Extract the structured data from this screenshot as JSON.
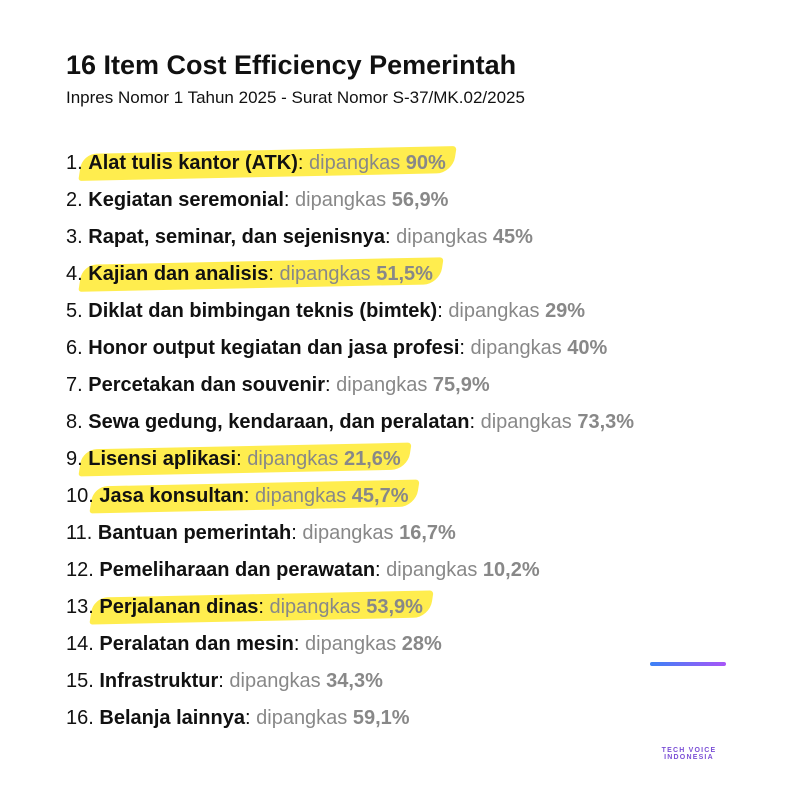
{
  "header": {
    "title": "16 Item Cost Efficiency Pemerintah",
    "subtitle": "Inpres Nomor 1 Tahun 2025 - Surat Nomor S-37/MK.02/2025"
  },
  "items": [
    {
      "num": "1.",
      "name": "Alat tulis kantor (ATK)",
      "verb": "dipangkas",
      "pct": "90%",
      "highlight": true
    },
    {
      "num": "2.",
      "name": "Kegiatan seremonial",
      "verb": "dipangkas",
      "pct": "56,9%",
      "highlight": false
    },
    {
      "num": "3.",
      "name": "Rapat, seminar, dan sejenisnya",
      "verb": "dipangkas",
      "pct": "45%",
      "highlight": false
    },
    {
      "num": "4.",
      "name": "Kajian dan analisis",
      "verb": "dipangkas",
      "pct": "51,5%",
      "highlight": true
    },
    {
      "num": "5.",
      "name": "Diklat dan bimbingan teknis (bimtek)",
      "verb": "dipangkas",
      "pct": "29%",
      "highlight": false
    },
    {
      "num": "6.",
      "name": "Honor output kegiatan dan jasa profesi",
      "verb": "dipangkas",
      "pct": "40%",
      "highlight": false
    },
    {
      "num": "7.",
      "name": "Percetakan dan souvenir",
      "verb": "dipangkas",
      "pct": "75,9%",
      "highlight": false
    },
    {
      "num": "8.",
      "name": "Sewa gedung, kendaraan, dan peralatan",
      "verb": "dipangkas",
      "pct": "73,3%",
      "highlight": false
    },
    {
      "num": "9.",
      "name": "Lisensi aplikasi",
      "verb": "dipangkas",
      "pct": "21,6%",
      "highlight": true
    },
    {
      "num": "10.",
      "name": "Jasa konsultan",
      "verb": "dipangkas",
      "pct": "45,7%",
      "highlight": true
    },
    {
      "num": "11.",
      "name": "Bantuan pemerintah",
      "verb": "dipangkas",
      "pct": "16,7%",
      "highlight": false
    },
    {
      "num": "12.",
      "name": "Pemeliharaan dan perawatan",
      "verb": "dipangkas",
      "pct": "10,2%",
      "highlight": false
    },
    {
      "num": "13.",
      "name": "Perjalanan dinas",
      "verb": "dipangkas",
      "pct": "53,9%",
      "highlight": true
    },
    {
      "num": "14.",
      "name": "Peralatan dan mesin",
      "verb": "dipangkas",
      "pct": "28%",
      "highlight": false
    },
    {
      "num": "15.",
      "name": "Infrastruktur",
      "verb": "dipangkas",
      "pct": "34,3%",
      "highlight": false
    },
    {
      "num": "16.",
      "name": "Belanja lainnya",
      "verb": "dipangkas",
      "pct": "59,1%",
      "highlight": false
    }
  ],
  "logo": {
    "text": "TECH VOICE INDONESIA",
    "icon": "waveform-t-icon",
    "color_start": "#3b82f6",
    "color_end": "#a855f7"
  },
  "colors": {
    "highlight": "#ffeb3b",
    "muted": "#888888",
    "text": "#111111"
  }
}
